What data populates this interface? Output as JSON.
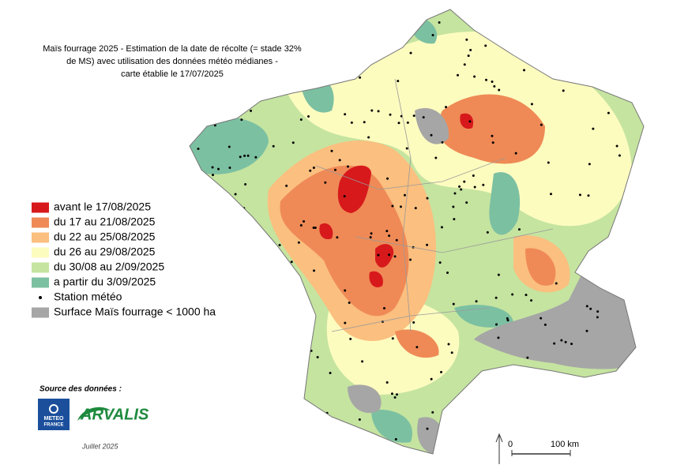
{
  "title_lines": [
    "Maïs fourrage 2025 - Estimation de la date de récolte (= stade 32%",
    "de MS) avec utilisation des données météo médianes -",
    "carte établie le 17/07/2025"
  ],
  "legend": [
    {
      "label": "avant le 17/08/2025",
      "color": "#d7191c",
      "marker": "square"
    },
    {
      "label": "du 17 au 21/08/2025",
      "color": "#ef8a56",
      "marker": "square"
    },
    {
      "label": "du 22 au 25/08/2025",
      "color": "#fbbf7f",
      "marker": "square"
    },
    {
      "label": "du 26 au 29/08/2025",
      "color": "#fdfcbf",
      "marker": "square"
    },
    {
      "label": "du 30/08 au 2/09/2025",
      "color": "#c5e4a0",
      "marker": "square"
    },
    {
      "label": "a partir du 3/09/2025",
      "color": "#7cc0a2",
      "marker": "square"
    },
    {
      "label": "Station météo",
      "color": "#000000",
      "marker": "dot"
    },
    {
      "label": "Surface Maïs fourrage < 1000 ha",
      "color": "#a6a6a6",
      "marker": "square"
    }
  ],
  "source": "Source des données :",
  "logo_meteo": [
    "METEO",
    "FRANCE"
  ],
  "logo_arvalis": "ARVALIS",
  "date": "Juillet 2025",
  "scale": {
    "start": "0",
    "end": "100 km"
  }
}
